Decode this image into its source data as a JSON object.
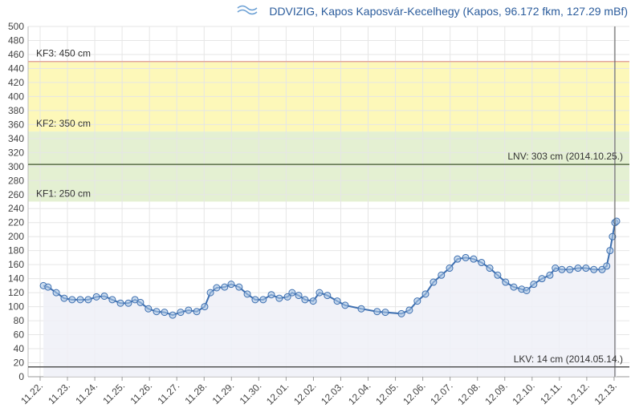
{
  "chart_data": {
    "type": "line",
    "title": "DDVIZIG, Kapos Kaposvár-Kecelhegy (Kapos, 96.172 fkm, 127.29 mBf)",
    "xlim": [
      -0.44,
      21.56
    ],
    "xticks": [
      {
        "value": 0,
        "label": "11.22."
      },
      {
        "value": 1,
        "label": "11.23."
      },
      {
        "value": 2,
        "label": "11.24."
      },
      {
        "value": 3,
        "label": "11.25."
      },
      {
        "value": 4,
        "label": "11.26."
      },
      {
        "value": 5,
        "label": "11.27."
      },
      {
        "value": 6,
        "label": "11.28."
      },
      {
        "value": 7,
        "label": "11.29."
      },
      {
        "value": 8,
        "label": "11.30."
      },
      {
        "value": 9,
        "label": "12.01."
      },
      {
        "value": 10,
        "label": "12.02."
      },
      {
        "value": 11,
        "label": "12.03."
      },
      {
        "value": 12,
        "label": "12.04."
      },
      {
        "value": 13,
        "label": "12.05."
      },
      {
        "value": 14,
        "label": "12.06."
      },
      {
        "value": 15,
        "label": "12.07."
      },
      {
        "value": 16,
        "label": "12.08."
      },
      {
        "value": 17,
        "label": "12.09."
      },
      {
        "value": 18,
        "label": "12.10."
      },
      {
        "value": 19,
        "label": "12.11."
      },
      {
        "value": 20,
        "label": "12.12."
      },
      {
        "value": 21,
        "label": "12.13."
      }
    ],
    "ylim": [
      0,
      500
    ],
    "yticks": [
      0,
      20,
      40,
      60,
      80,
      100,
      120,
      140,
      160,
      180,
      200,
      220,
      240,
      260,
      280,
      300,
      320,
      340,
      360,
      380,
      400,
      420,
      440,
      460,
      480,
      500
    ],
    "grid": true,
    "bands": [
      {
        "from": 350,
        "to": 450,
        "color": "#fdf8b9"
      },
      {
        "from": 250,
        "to": 350,
        "color": "#e4f0d2"
      }
    ],
    "lines": [
      {
        "value": 450,
        "label": "KF3: 450 cm",
        "color": "#e3a7a0",
        "align": "left"
      },
      {
        "value": 350,
        "label": "KF2: 350 cm",
        "align": "left"
      },
      {
        "value": 250,
        "label": "KF1: 250 cm",
        "align": "left"
      },
      {
        "value": 303,
        "label": "LNV: 303 cm (2014.10.25.)",
        "color": "#5a6e48",
        "align": "right"
      },
      {
        "value": 14,
        "label": "LKV: 14 cm (2014.05.14.)",
        "color": "#555555",
        "align": "right"
      }
    ],
    "vline_x": 21.03,
    "series": [
      {
        "color": "#3d6fb0",
        "x": [
          0.12,
          0.29,
          0.59,
          0.88,
          1.17,
          1.47,
          1.76,
          2.06,
          2.35,
          2.64,
          2.94,
          3.23,
          3.47,
          3.67,
          3.96,
          4.26,
          4.55,
          4.85,
          5.14,
          5.43,
          5.73,
          6.02,
          6.23,
          6.46,
          6.75,
          6.99,
          7.28,
          7.58,
          7.87,
          8.16,
          8.46,
          8.75,
          9.05,
          9.22,
          9.46,
          9.69,
          9.99,
          10.22,
          10.51,
          10.87,
          11.16,
          11.75,
          12.33,
          12.63,
          13.22,
          13.51,
          13.8,
          14.1,
          14.39,
          14.68,
          14.98,
          15.27,
          15.57,
          15.86,
          16.15,
          16.45,
          16.74,
          17.03,
          17.33,
          17.62,
          17.8,
          18.06,
          18.36,
          18.65,
          18.85,
          19.09,
          19.38,
          19.68,
          19.97,
          20.26,
          20.56,
          20.73,
          20.85,
          20.94,
          21.03,
          21.09
        ],
        "values": [
          130,
          128,
          120,
          112,
          110,
          110,
          110,
          114,
          115,
          110,
          105,
          105,
          110,
          106,
          97,
          93,
          92,
          88,
          92,
          95,
          93,
          100,
          120,
          127,
          128,
          132,
          128,
          118,
          110,
          110,
          117,
          112,
          114,
          120,
          116,
          110,
          108,
          120,
          116,
          108,
          102,
          97,
          93,
          92,
          90,
          95,
          108,
          118,
          135,
          145,
          155,
          168,
          170,
          168,
          163,
          155,
          145,
          135,
          128,
          125,
          123,
          132,
          140,
          145,
          155,
          153,
          153,
          155,
          155,
          153,
          153,
          158,
          180,
          200,
          220,
          222
        ]
      }
    ]
  }
}
